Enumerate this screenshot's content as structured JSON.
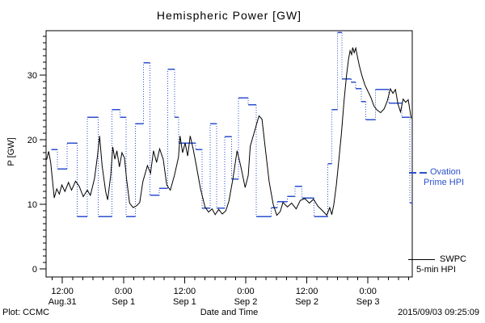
{
  "figure": {
    "title": "Hemispheric Power [GW]",
    "footer_left": "Plot: CCMC",
    "footer_right": "2015/09/03 09:25:09"
  },
  "legend": {
    "ovation": {
      "line1": "Ovation",
      "line2": "Prime HPI"
    },
    "swpc": {
      "line1": "SWPC",
      "line2": "5-min HPI"
    }
  },
  "colors": {
    "ovation_blue": "#2c50cc",
    "swpc_black": "#000000",
    "frame": "#000000",
    "background": "#ffffff"
  },
  "chart_data": {
    "type": "line",
    "title": "Hemispheric Power [GW]",
    "xlabel": "Date and Time",
    "ylabel": "P [GW]",
    "x_unit": "hours since 2015-08-31 00:00 UT",
    "xlim": [
      8.8,
      80.7
    ],
    "ylim": [
      -1.25,
      36.9
    ],
    "grid": false,
    "legend_position": "right-outside",
    "x_ticks": [
      {
        "t": 12,
        "time": "12:00",
        "date": "Aug.31"
      },
      {
        "t": 24,
        "time": "0:00",
        "date": "Sep 1"
      },
      {
        "t": 36,
        "time": "12:00",
        "date": "Sep 1"
      },
      {
        "t": 48,
        "time": "0:00",
        "date": "Sep 2"
      },
      {
        "t": 60,
        "time": "12:00",
        "date": "Sep 2"
      },
      {
        "t": 72,
        "time": "0:00",
        "date": "Sep 3"
      }
    ],
    "x_minor_step_hours": 2,
    "y_ticks": [
      0,
      10,
      20,
      30
    ],
    "y_minor_step": 1,
    "series": [
      {
        "name": "Ovation Prime HPI",
        "color": "#2c50cc",
        "style": "steps-dotted-verticals",
        "points": [
          [
            9.8,
            18.5
          ],
          [
            11.0,
            15.5
          ],
          [
            12.9,
            19.5
          ],
          [
            14.9,
            8.1
          ],
          [
            16.9,
            23.5
          ],
          [
            19.0,
            8.1
          ],
          [
            21.7,
            24.7
          ],
          [
            23.3,
            23.5
          ],
          [
            24.5,
            8.1
          ],
          [
            26.3,
            22.5
          ],
          [
            27.9,
            31.9
          ],
          [
            29.2,
            11.4
          ],
          [
            31.0,
            12.5
          ],
          [
            32.7,
            30.9
          ],
          [
            34.0,
            23.5
          ],
          [
            34.8,
            19.5
          ],
          [
            38.2,
            18.5
          ],
          [
            39.4,
            9.4
          ],
          [
            41.0,
            22.5
          ],
          [
            42.3,
            9.4
          ],
          [
            43.9,
            20.5
          ],
          [
            45.2,
            13.9
          ],
          [
            46.6,
            26.5
          ],
          [
            48.5,
            25.4
          ],
          [
            50.1,
            8.1
          ],
          [
            53.0,
            9.5
          ],
          [
            54.2,
            10.4
          ],
          [
            56.2,
            11.2
          ],
          [
            57.7,
            12.8
          ],
          [
            59.0,
            11.0
          ],
          [
            61.4,
            8.1
          ],
          [
            64.1,
            16.3
          ],
          [
            64.9,
            24.7
          ],
          [
            66.0,
            36.6
          ],
          [
            66.9,
            29.4
          ],
          [
            68.7,
            28.9
          ],
          [
            69.6,
            27.9
          ],
          [
            70.7,
            25.9
          ],
          [
            71.6,
            23.1
          ],
          [
            73.5,
            27.8
          ],
          [
            76.1,
            25.7
          ],
          [
            78.6,
            23.5
          ],
          [
            80.2,
            10.2
          ]
        ]
      },
      {
        "name": "SWPC 5-min HPI",
        "color": "#000000",
        "style": "solid-line",
        "points": [
          [
            8.9,
            16.9
          ],
          [
            9.3,
            18.2
          ],
          [
            9.7,
            16.5
          ],
          [
            10.4,
            11.0
          ],
          [
            10.9,
            12.4
          ],
          [
            11.4,
            11.6
          ],
          [
            11.9,
            13.0
          ],
          [
            12.5,
            12.0
          ],
          [
            13.2,
            13.4
          ],
          [
            13.8,
            12.2
          ],
          [
            14.6,
            13.6
          ],
          [
            15.3,
            12.8
          ],
          [
            16.1,
            11.2
          ],
          [
            16.9,
            12.2
          ],
          [
            17.5,
            11.4
          ],
          [
            18.3,
            14.0
          ],
          [
            18.9,
            17.5
          ],
          [
            19.3,
            20.6
          ],
          [
            19.8,
            16.0
          ],
          [
            20.5,
            12.0
          ],
          [
            20.9,
            10.7
          ],
          [
            21.5,
            14.5
          ],
          [
            21.9,
            18.9
          ],
          [
            22.3,
            17.0
          ],
          [
            22.7,
            18.3
          ],
          [
            23.2,
            15.8
          ],
          [
            23.7,
            18.0
          ],
          [
            24.2,
            17.2
          ],
          [
            24.6,
            14.0
          ],
          [
            25.2,
            10.2
          ],
          [
            25.9,
            9.5
          ],
          [
            26.6,
            9.8
          ],
          [
            27.2,
            10.3
          ],
          [
            27.8,
            13.5
          ],
          [
            28.7,
            16.0
          ],
          [
            29.3,
            14.8
          ],
          [
            29.9,
            18.3
          ],
          [
            30.5,
            16.5
          ],
          [
            31.1,
            18.6
          ],
          [
            31.8,
            17.0
          ],
          [
            32.5,
            13.0
          ],
          [
            33.2,
            12.2
          ],
          [
            34.0,
            14.5
          ],
          [
            34.8,
            17.3
          ],
          [
            35.1,
            20.6
          ],
          [
            35.6,
            18.0
          ],
          [
            36.1,
            19.5
          ],
          [
            36.6,
            17.5
          ],
          [
            37.1,
            20.6
          ],
          [
            37.7,
            18.5
          ],
          [
            38.3,
            16.0
          ],
          [
            39.1,
            12.5
          ],
          [
            40.0,
            9.6
          ],
          [
            40.7,
            8.8
          ],
          [
            41.4,
            9.3
          ],
          [
            42.0,
            8.4
          ],
          [
            42.7,
            9.2
          ],
          [
            43.4,
            8.5
          ],
          [
            44.1,
            9.0
          ],
          [
            44.7,
            10.5
          ],
          [
            45.5,
            14.0
          ],
          [
            46.3,
            18.3
          ],
          [
            47.0,
            16.0
          ],
          [
            47.9,
            12.6
          ],
          [
            48.5,
            14.5
          ],
          [
            48.9,
            19.0
          ],
          [
            49.8,
            21.5
          ],
          [
            50.6,
            23.7
          ],
          [
            51.2,
            23.2
          ],
          [
            51.8,
            19.0
          ],
          [
            52.6,
            13.5
          ],
          [
            53.4,
            10.0
          ],
          [
            54.1,
            8.3
          ],
          [
            54.8,
            8.9
          ],
          [
            55.3,
            10.3
          ],
          [
            56.2,
            9.6
          ],
          [
            57.0,
            10.2
          ],
          [
            57.9,
            9.3
          ],
          [
            58.7,
            10.6
          ],
          [
            59.6,
            10.9
          ],
          [
            60.5,
            10.2
          ],
          [
            61.3,
            10.8
          ],
          [
            62.2,
            9.7
          ],
          [
            63.1,
            9.0
          ],
          [
            63.9,
            8.3
          ],
          [
            64.5,
            9.5
          ],
          [
            64.9,
            8.4
          ],
          [
            65.3,
            10.0
          ],
          [
            65.8,
            13.0
          ],
          [
            66.3,
            17.0
          ],
          [
            66.8,
            21.0
          ],
          [
            67.3,
            26.0
          ],
          [
            67.8,
            30.0
          ],
          [
            68.2,
            32.5
          ],
          [
            68.5,
            33.8
          ],
          [
            68.8,
            33.2
          ],
          [
            69.0,
            34.3
          ],
          [
            69.3,
            33.5
          ],
          [
            69.6,
            34.2
          ],
          [
            69.9,
            33.0
          ],
          [
            70.3,
            31.5
          ],
          [
            70.8,
            30.0
          ],
          [
            71.4,
            28.5
          ],
          [
            72.0,
            27.5
          ],
          [
            72.6,
            26.5
          ],
          [
            73.2,
            25.2
          ],
          [
            73.8,
            24.6
          ],
          [
            74.5,
            24.2
          ],
          [
            75.2,
            24.8
          ],
          [
            75.8,
            26.0
          ],
          [
            76.4,
            27.9
          ],
          [
            76.9,
            27.2
          ],
          [
            77.4,
            27.8
          ],
          [
            77.9,
            25.5
          ],
          [
            78.4,
            24.3
          ],
          [
            78.9,
            26.3
          ],
          [
            79.4,
            25.8
          ],
          [
            79.9,
            26.2
          ],
          [
            80.2,
            24.8
          ],
          [
            80.5,
            23.3
          ]
        ]
      }
    ]
  }
}
